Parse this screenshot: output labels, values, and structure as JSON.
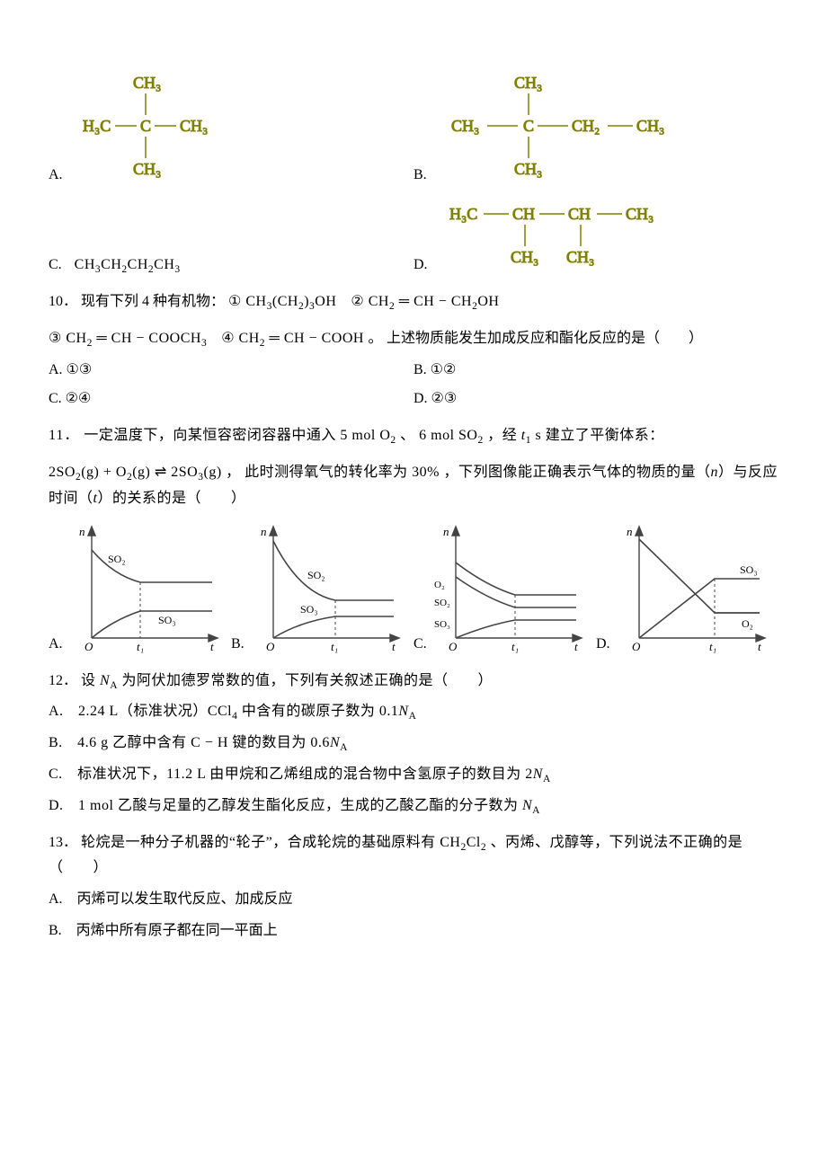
{
  "colors": {
    "text": "#000000",
    "structure": "#808000",
    "graph_axes": "#444444",
    "graph_dash": "#444444",
    "background": "#ffffff"
  },
  "q9": {
    "a_label": "A.",
    "b_label": "B.",
    "c_label": "C.",
    "d_label": "D.",
    "c_formula_html": "CH<sub>3</sub>CH<sub>2</sub>CH<sub>2</sub>CH<sub>3</sub>",
    "struct_a": {
      "top": "CH₃",
      "left": "H₃C",
      "mid": "C",
      "right": "CH₃",
      "bottom": "CH₃"
    },
    "struct_b": {
      "top": "CH₃",
      "left": "CH₃",
      "mid": "C",
      "r1": "CH₂",
      "r2": "CH₃",
      "bottom": "CH₃"
    },
    "struct_d": {
      "l1": "H₃C",
      "c1": "CH",
      "c2": "CH",
      "r1": "CH₃",
      "b1": "CH₃",
      "b2": "CH₃"
    }
  },
  "q10": {
    "number": "10．",
    "stem_prefix": "现有下列 4 种有机物：",
    "items": {
      "1": "① CH<sub>3</sub>(CH<sub>2</sub>)<sub>3</sub>OH",
      "2": "② CH<sub>2</sub> ═ CH − CH<sub>2</sub>OH",
      "3": "③ CH<sub>2</sub> ═ CH − COOCH<sub>3</sub>",
      "4": "④ CH<sub>2</sub> ═ CH − COOH 。"
    },
    "tail": "上述物质能发生加成反应和酯化反应的是（　　）",
    "options": {
      "a": "A. ①③",
      "b": "B. ①②",
      "c": "C. ②④",
      "d": "D. ②③"
    }
  },
  "q11": {
    "number": "11．",
    "stem1": "一定温度下，向某恒容密闭容器中通入 5 mol O<sub>2</sub> 、 6 mol SO<sub>2</sub> ，经 <span class=\"it\">t</span><sub>1</sub> s 建立了平衡体系：",
    "eq": "2SO<sub>2</sub>(g) + O<sub>2</sub>(g) ⇌ 2SO<sub>3</sub>(g) ，",
    "stem2": "此时测得氧气的转化率为 30% ，下列图像能正确表示气体的物质的量（<span class=\"it\">n</span>）与反应时间（<span class=\"it\">t</span>）的关系的是（　　）",
    "labels": {
      "a": "A.",
      "b": "B.",
      "c": "C.",
      "d": "D."
    },
    "axes": {
      "y": "n",
      "x": "t",
      "origin": "O",
      "t1": "t₁"
    },
    "series": {
      "so2": "SO₂",
      "so3": "SO₃",
      "o2": "O₂"
    }
  },
  "q12": {
    "number": "12．",
    "stem": "设 <span class=\"it\">N</span><sub>A</sub> 为阿伏加德罗常数的值，下列有关叙述正确的是（　　）",
    "options": {
      "a": "A.　2.24 L（标准状况）CCl<sub>4</sub> 中含有的碳原子数为 0.1<span class=\"it\">N</span><sub>A</sub>",
      "b": "B.　4.6 g 乙醇中含有 C − H 键的数目为 0.6<span class=\"it\">N</span><sub>A</sub>",
      "c": "C.　标准状况下，11.2 L 由甲烷和乙烯组成的混合物中含氢原子的数目为 2<span class=\"it\">N</span><sub>A</sub>",
      "d": "D.　1 mol 乙酸与足量的乙醇发生酯化反应，生成的乙酸乙酯的分子数为 <span class=\"it\">N</span><sub>A</sub>"
    }
  },
  "q13": {
    "number": "13．",
    "stem": "轮烷是一种分子机器的“轮子”，合成轮烷的基础原料有 CH<sub>2</sub>Cl<sub>2</sub> 、丙烯、戊醇等，下列说法不正确的是（　　）",
    "options": {
      "a": "A.　丙烯可以发生取代反应、加成反应",
      "b": "B.　丙烯中所有原子都在同一平面上"
    }
  }
}
